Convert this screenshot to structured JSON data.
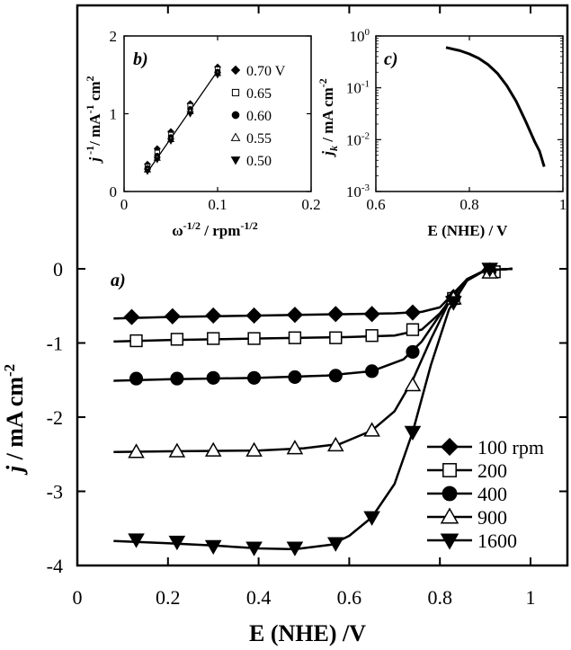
{
  "chart_data": [
    {
      "panel": "a)",
      "type": "line",
      "xlabel": "E (NHE) /V",
      "ylabel": "j / mA cm-2",
      "xlim": [
        0,
        1.08
      ],
      "ylim": [
        -4,
        0.3
      ],
      "x_ticks": [
        "0",
        "0.2",
        "0.4",
        "0.6",
        "0.8",
        "1"
      ],
      "y_ticks": [
        "0",
        "-1",
        "-2",
        "-3",
        "-4"
      ],
      "legend": {
        "placement": "bottom-right",
        "entries": [
          "100 rpm",
          "200",
          "400",
          "900",
          "1600"
        ]
      },
      "series": [
        {
          "name": "100 rpm",
          "marker": "diamond",
          "curve": [
            [
              0.08,
              -0.67
            ],
            [
              0.2,
              -0.65
            ],
            [
              0.4,
              -0.63
            ],
            [
              0.6,
              -0.61
            ],
            [
              0.7,
              -0.6
            ],
            [
              0.76,
              -0.58
            ],
            [
              0.8,
              -0.52
            ],
            [
              0.83,
              -0.33
            ],
            [
              0.86,
              -0.14
            ],
            [
              0.9,
              -0.02
            ],
            [
              0.96,
              0.0
            ]
          ],
          "markers": [
            [
              0.12,
              -0.65
            ],
            [
              0.21,
              -0.64
            ],
            [
              0.3,
              -0.63
            ],
            [
              0.39,
              -0.63
            ],
            [
              0.48,
              -0.62
            ],
            [
              0.57,
              -0.61
            ],
            [
              0.65,
              -0.61
            ],
            [
              0.74,
              -0.59
            ],
            [
              0.83,
              -0.38
            ],
            [
              0.91,
              -0.02
            ]
          ]
        },
        {
          "name": "200",
          "marker": "square",
          "curve": [
            [
              0.08,
              -0.98
            ],
            [
              0.2,
              -0.96
            ],
            [
              0.4,
              -0.94
            ],
            [
              0.6,
              -0.92
            ],
            [
              0.7,
              -0.9
            ],
            [
              0.76,
              -0.82
            ],
            [
              0.8,
              -0.6
            ],
            [
              0.83,
              -0.36
            ],
            [
              0.86,
              -0.14
            ],
            [
              0.9,
              -0.02
            ],
            [
              0.96,
              0.0
            ]
          ],
          "markers": [
            [
              0.13,
              -0.97
            ],
            [
              0.22,
              -0.95
            ],
            [
              0.3,
              -0.94
            ],
            [
              0.39,
              -0.94
            ],
            [
              0.48,
              -0.93
            ],
            [
              0.57,
              -0.93
            ],
            [
              0.65,
              -0.9
            ],
            [
              0.74,
              -0.82
            ],
            [
              0.83,
              -0.4
            ],
            [
              0.92,
              -0.04
            ]
          ]
        },
        {
          "name": "400",
          "marker": "circle",
          "curve": [
            [
              0.08,
              -1.51
            ],
            [
              0.2,
              -1.49
            ],
            [
              0.4,
              -1.47
            ],
            [
              0.55,
              -1.44
            ],
            [
              0.65,
              -1.38
            ],
            [
              0.72,
              -1.22
            ],
            [
              0.76,
              -0.98
            ],
            [
              0.8,
              -0.62
            ],
            [
              0.83,
              -0.36
            ],
            [
              0.86,
              -0.14
            ],
            [
              0.9,
              -0.02
            ],
            [
              0.96,
              0.0
            ]
          ],
          "markers": [
            [
              0.13,
              -1.48
            ],
            [
              0.22,
              -1.48
            ],
            [
              0.3,
              -1.47
            ],
            [
              0.39,
              -1.47
            ],
            [
              0.48,
              -1.46
            ],
            [
              0.57,
              -1.44
            ],
            [
              0.65,
              -1.38
            ],
            [
              0.74,
              -1.12
            ],
            [
              0.83,
              -0.41
            ],
            [
              0.91,
              -0.03
            ]
          ]
        },
        {
          "name": "900",
          "marker": "triangle-up",
          "curve": [
            [
              0.08,
              -2.47
            ],
            [
              0.2,
              -2.46
            ],
            [
              0.4,
              -2.45
            ],
            [
              0.5,
              -2.42
            ],
            [
              0.58,
              -2.36
            ],
            [
              0.65,
              -2.18
            ],
            [
              0.7,
              -1.92
            ],
            [
              0.74,
              -1.5
            ],
            [
              0.78,
              -0.95
            ],
            [
              0.82,
              -0.45
            ],
            [
              0.86,
              -0.14
            ],
            [
              0.9,
              -0.02
            ],
            [
              0.96,
              0.0
            ]
          ],
          "markers": [
            [
              0.13,
              -2.47
            ],
            [
              0.22,
              -2.46
            ],
            [
              0.3,
              -2.45
            ],
            [
              0.39,
              -2.45
            ],
            [
              0.48,
              -2.42
            ],
            [
              0.57,
              -2.38
            ],
            [
              0.65,
              -2.18
            ],
            [
              0.74,
              -1.57
            ],
            [
              0.83,
              -0.4
            ],
            [
              0.91,
              -0.05
            ]
          ]
        },
        {
          "name": "1600",
          "marker": "triangle-down",
          "curve": [
            [
              0.08,
              -3.67
            ],
            [
              0.2,
              -3.7
            ],
            [
              0.3,
              -3.73
            ],
            [
              0.4,
              -3.77
            ],
            [
              0.48,
              -3.78
            ],
            [
              0.56,
              -3.72
            ],
            [
              0.6,
              -3.6
            ],
            [
              0.65,
              -3.35
            ],
            [
              0.7,
              -2.9
            ],
            [
              0.74,
              -2.2
            ],
            [
              0.78,
              -1.3
            ],
            [
              0.82,
              -0.55
            ],
            [
              0.86,
              -0.16
            ],
            [
              0.9,
              -0.02
            ],
            [
              0.96,
              0.0
            ]
          ],
          "markers": [
            [
              0.13,
              -3.65
            ],
            [
              0.22,
              -3.68
            ],
            [
              0.3,
              -3.74
            ],
            [
              0.39,
              -3.76
            ],
            [
              0.48,
              -3.76
            ],
            [
              0.57,
              -3.7
            ],
            [
              0.65,
              -3.35
            ],
            [
              0.74,
              -2.2
            ],
            [
              0.83,
              -0.45
            ],
            [
              0.91,
              0.0
            ]
          ]
        }
      ]
    },
    {
      "panel": "b)",
      "type": "scatter",
      "xlabel": "ω-1/2 / rpm-1/2",
      "ylabel": "j -1/ mA-1 cm2",
      "xlim": [
        0,
        0.2
      ],
      "ylim": [
        0,
        2
      ],
      "x_ticks": [
        "0",
        "0.1",
        "0.2"
      ],
      "y_ticks": [
        "0",
        "1",
        "2"
      ],
      "legend": {
        "placement": "right",
        "entries": [
          "0.70 V",
          "0.65",
          "0.60",
          "0.55",
          "0.50"
        ]
      },
      "fit_line": [
        [
          0.025,
          0.25
        ],
        [
          0.1,
          1.55
        ]
      ],
      "series": [
        {
          "name": "0.70 V",
          "marker": "diamond",
          "x": [
            0.025,
            0.0354,
            0.05,
            0.0707,
            0.1
          ],
          "y": [
            0.35,
            0.55,
            0.77,
            1.13,
            1.6
          ]
        },
        {
          "name": "0.65",
          "marker": "square-open",
          "x": [
            0.025,
            0.0354,
            0.05,
            0.0707,
            0.1
          ],
          "y": [
            0.32,
            0.5,
            0.73,
            1.1,
            1.57
          ]
        },
        {
          "name": "0.60",
          "marker": "circle",
          "x": [
            0.025,
            0.0354,
            0.05,
            0.0707,
            0.1
          ],
          "y": [
            0.3,
            0.46,
            0.7,
            1.06,
            1.54
          ]
        },
        {
          "name": "0.55",
          "marker": "triangle-up-open",
          "x": [
            0.025,
            0.0354,
            0.05,
            0.0707,
            0.1
          ],
          "y": [
            0.28,
            0.43,
            0.67,
            1.03,
            1.52
          ]
        },
        {
          "name": "0.50",
          "marker": "triangle-down",
          "x": [
            0.025,
            0.0354,
            0.05,
            0.0707,
            0.1
          ],
          "y": [
            0.26,
            0.41,
            0.65,
            1.0,
            1.5
          ]
        }
      ]
    },
    {
      "panel": "c)",
      "type": "line",
      "xlabel": "E (NHE) / V",
      "ylabel": "jk / mA cm-2",
      "xlim": [
        0.6,
        1.0
      ],
      "ylim": [
        0.001,
        1
      ],
      "yscale": "log",
      "x_ticks": [
        "0.6",
        "0.8",
        "1"
      ],
      "series": [
        {
          "x": [
            0.75,
            0.78,
            0.8,
            0.82,
            0.84,
            0.86,
            0.88,
            0.9,
            0.92,
            0.94,
            0.95,
            0.96
          ],
          "y": [
            0.6,
            0.52,
            0.45,
            0.37,
            0.28,
            0.19,
            0.11,
            0.055,
            0.023,
            0.009,
            0.006,
            0.003
          ]
        }
      ]
    }
  ]
}
